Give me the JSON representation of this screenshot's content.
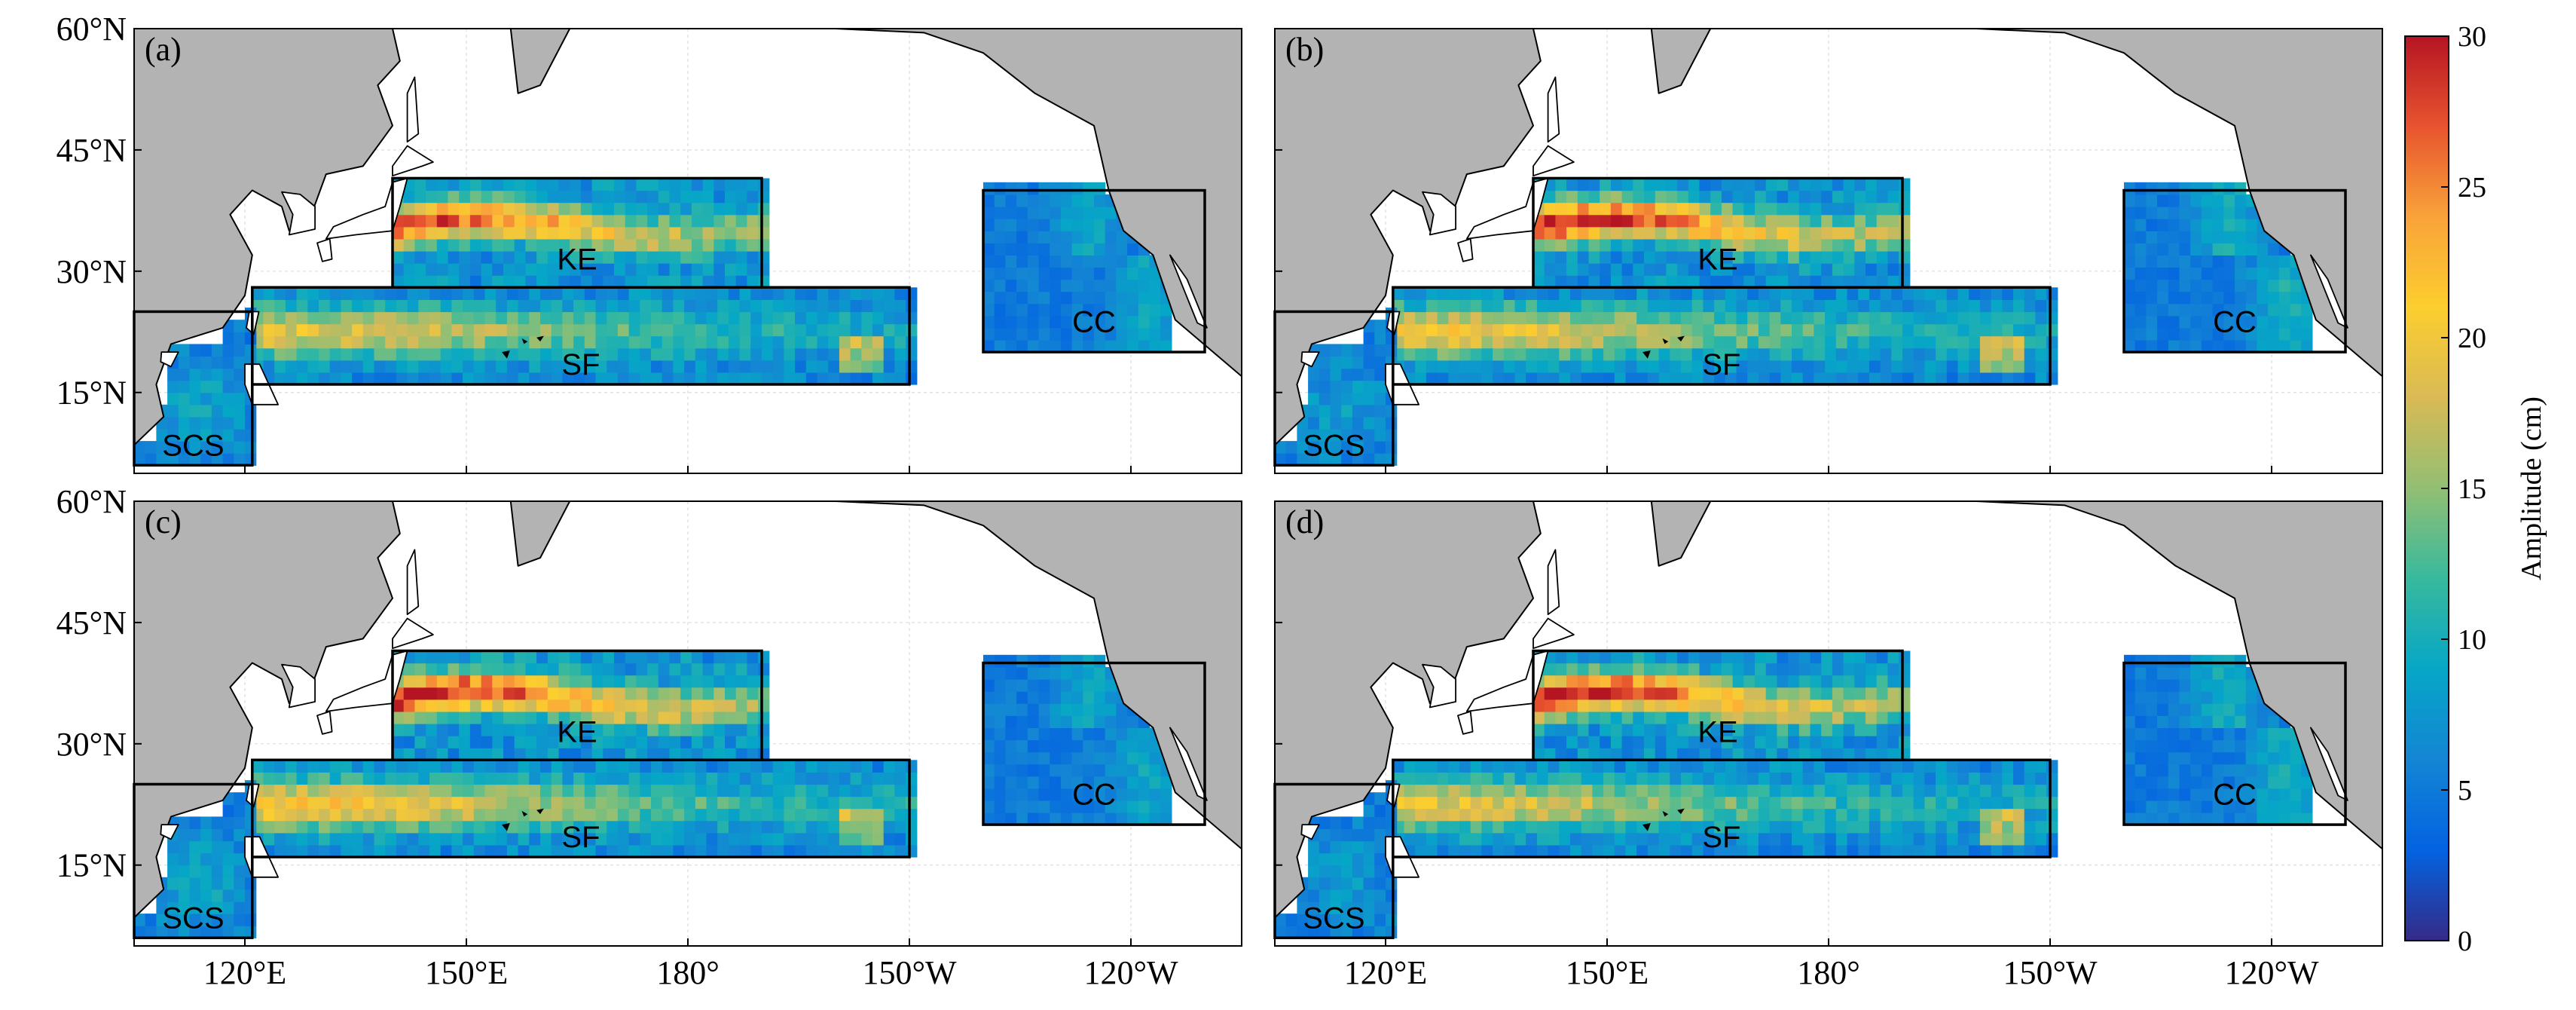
{
  "figure": {
    "colorbar": {
      "label": "Amplitude (cm)",
      "ticks": [
        "0",
        "5",
        "10",
        "15",
        "20",
        "25",
        "30"
      ],
      "range": [
        0,
        30
      ],
      "colormap": [
        "#352a87",
        "#0363e1",
        "#1485d4",
        "#06a7c6",
        "#38b99e",
        "#92bf73",
        "#d9ba56",
        "#fcce2e",
        "#f9a33a",
        "#e8542f",
        "#b51523"
      ]
    },
    "lat_ticks": [
      "60°N",
      "45°N",
      "30°N",
      "15°N"
    ],
    "lon_ticks": [
      "120°E",
      "150°E",
      "180°",
      "150°W",
      "120°W"
    ],
    "land_color": "#b3b3b3",
    "panels": [
      {
        "label": "(a)",
        "regions": {
          "kuroshio_extension": "KE",
          "subtropical_front": "SF",
          "california_current": "CC",
          "south_china_sea": "SCS"
        }
      },
      {
        "label": "(b)",
        "regions": {
          "kuroshio_extension": "KE",
          "subtropical_front": "SF",
          "california_current": "CC",
          "south_china_sea": "SCS"
        }
      },
      {
        "label": "(c)",
        "regions": {
          "kuroshio_extension": "KE",
          "subtropical_front": "SF",
          "california_current": "CC",
          "south_china_sea": "SCS"
        }
      },
      {
        "label": "(d)",
        "regions": {
          "kuroshio_extension": "KE",
          "subtropical_front": "SF",
          "california_current": "CC",
          "south_china_sea": "SCS"
        }
      }
    ],
    "region_intensity_cm": [
      {
        "KE_peak": 28,
        "SF_peak": 19,
        "CC_peak": 9,
        "SCS_peak": 9
      },
      {
        "KE_peak": 30,
        "SF_peak": 20,
        "CC_peak": 10,
        "SCS_peak": 8
      },
      {
        "KE_peak": 30,
        "SF_peak": 21,
        "CC_peak": 9,
        "SCS_peak": 9
      },
      {
        "KE_peak": 30,
        "SF_peak": 19,
        "CC_peak": 10,
        "SCS_peak": 8
      }
    ]
  }
}
